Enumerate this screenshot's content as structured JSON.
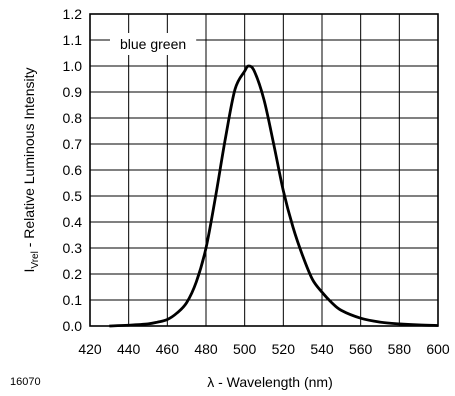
{
  "chart_data": {
    "type": "line",
    "title": "",
    "xlabel": "λ - Wavelength (nm)",
    "ylabel_main": "I",
    "ylabel_sub": "Vrel",
    "ylabel_rest": " - Relative Luminous Intensity",
    "xlim": [
      420,
      600
    ],
    "ylim": [
      0,
      1.2
    ],
    "x_ticks": [
      "420",
      "440",
      "460",
      "480",
      "500",
      "520",
      "540",
      "560",
      "580",
      "600"
    ],
    "y_ticks": [
      "0.0",
      "0.1",
      "0.2",
      "0.3",
      "0.4",
      "0.5",
      "0.6",
      "0.7",
      "0.8",
      "0.9",
      "1.0",
      "1.1",
      "1.2"
    ],
    "grid": true,
    "annotation": "blue green",
    "figure_id": "16070",
    "series": [
      {
        "x": [
          430,
          440,
          450,
          455,
          460,
          465,
          470,
          475,
          480,
          485,
          490,
          495,
          500,
          502,
          505,
          510,
          515,
          520,
          525,
          530,
          535,
          540,
          545,
          550,
          560,
          570,
          580,
          590,
          600
        ],
        "y": [
          0.0,
          0.003,
          0.008,
          0.015,
          0.025,
          0.05,
          0.09,
          0.17,
          0.3,
          0.5,
          0.72,
          0.91,
          0.98,
          1.0,
          0.98,
          0.87,
          0.7,
          0.52,
          0.38,
          0.27,
          0.18,
          0.13,
          0.09,
          0.06,
          0.03,
          0.015,
          0.008,
          0.004,
          0.002
        ]
      }
    ]
  }
}
